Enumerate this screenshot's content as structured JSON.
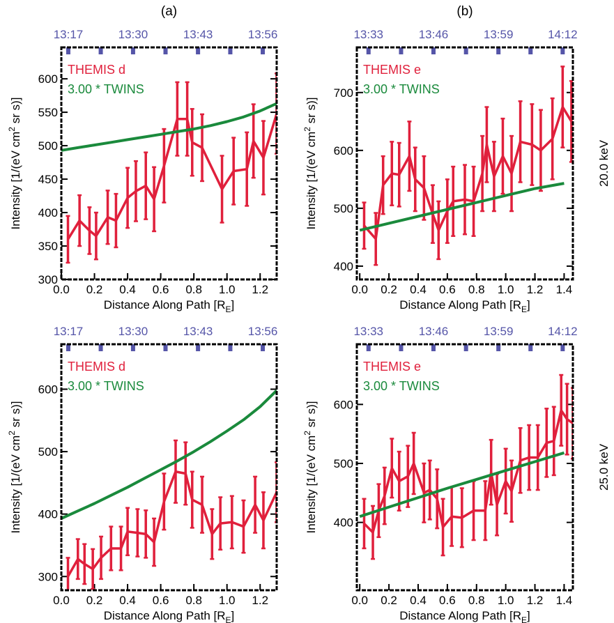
{
  "chart_data": [
    {
      "type": "line",
      "title": "(a)",
      "xlim": [
        0,
        1.3
      ],
      "ylim": [
        300,
        647
      ],
      "xticks": [
        {
          "value": 0,
          "label": "0.0"
        },
        0.2,
        0.4,
        0.6,
        0.8,
        {
          "value": 1,
          "label": "1.0"
        },
        1.2
      ],
      "yticks": [
        300,
        350,
        400,
        450,
        500,
        550,
        600
      ],
      "x2ticks": [
        {
          "value": 0.042,
          "label": "13:17"
        },
        {
          "value": 0.433,
          "label": "13:30"
        },
        {
          "value": 0.825,
          "label": "13:43"
        },
        {
          "value": 1.216,
          "label": "13:56"
        }
      ],
      "x2minorticks": [
        0.238,
        0.629,
        1.02
      ],
      "x2color": "#5555a8",
      "xlabel": [
        "Distance Along Path [R",
        "E",
        "]"
      ],
      "ylabel": [
        "Intensity [1/(eV cm",
        "2",
        " sr s)]"
      ],
      "series": [
        {
          "name": "THEMIS d",
          "color": "#e0203c",
          "x": [
            0.04,
            0.11,
            0.17,
            0.21,
            0.28,
            0.33,
            0.4,
            0.45,
            0.51,
            0.56,
            0.62,
            0.7,
            0.76,
            0.79,
            0.85,
            0.97,
            1.04,
            1.12,
            1.16,
            1.22,
            1.3
          ],
          "values": [
            360,
            388,
            373,
            365,
            393,
            388,
            422,
            432,
            440,
            420,
            470,
            540,
            540,
            505,
            497,
            435,
            462,
            465,
            507,
            482,
            548
          ],
          "errors": [
            35,
            38,
            35,
            35,
            40,
            40,
            45,
            45,
            50,
            48,
            55,
            55,
            55,
            50,
            50,
            50,
            50,
            55,
            55,
            55,
            60
          ]
        },
        {
          "name": "3.00 * TWINS",
          "color": "#1a8a3c",
          "x": [
            0,
            0.1,
            0.2,
            0.3,
            0.4,
            0.5,
            0.6,
            0.7,
            0.8,
            0.9,
            1.0,
            1.1,
            1.2,
            1.3
          ],
          "values": [
            493,
            497,
            501,
            505,
            509,
            513,
            517,
            521,
            525,
            530,
            536,
            543,
            552,
            563
          ]
        }
      ]
    },
    {
      "type": "line",
      "title": "(b)",
      "row_label": "20.0 keV",
      "xlim": [
        -0.02,
        1.46
      ],
      "ylim": [
        377,
        778
      ],
      "xticks": [
        {
          "value": 0,
          "label": "0.0"
        },
        0.2,
        0.4,
        0.6,
        0.8,
        {
          "value": 1,
          "label": "1.0"
        },
        1.2,
        1.4
      ],
      "yticks": [
        400,
        500,
        600,
        700
      ],
      "x2ticks": [
        {
          "value": 0.06,
          "label": "13:33"
        },
        {
          "value": 0.505,
          "label": "13:46"
        },
        {
          "value": 0.95,
          "label": "13:59"
        },
        {
          "value": 1.39,
          "label": "14:12"
        }
      ],
      "x2minorticks": [
        0.283,
        0.728,
        1.17
      ],
      "x2color": "#5555a8",
      "xlabel": [
        "Distance Along Path [R",
        "E",
        "]"
      ],
      "ylabel": [
        "Intensity [1/(eV cm",
        "2",
        " sr s)]"
      ],
      "series": [
        {
          "name": "THEMIS e",
          "color": "#e0203c",
          "x": [
            0.03,
            0.11,
            0.16,
            0.22,
            0.27,
            0.34,
            0.38,
            0.44,
            0.5,
            0.54,
            0.6,
            0.64,
            0.72,
            0.78,
            0.84,
            0.87,
            0.92,
            0.98,
            1.04,
            1.1,
            1.18,
            1.24,
            1.32,
            1.39,
            1.45
          ],
          "values": [
            470,
            447,
            540,
            560,
            558,
            590,
            550,
            535,
            490,
            462,
            495,
            512,
            515,
            512,
            560,
            610,
            555,
            590,
            560,
            615,
            610,
            600,
            620,
            675,
            650
          ],
          "errors": [
            40,
            45,
            50,
            55,
            55,
            60,
            55,
            55,
            50,
            50,
            55,
            60,
            60,
            60,
            65,
            65,
            60,
            65,
            65,
            70,
            70,
            70,
            70,
            70,
            70
          ]
        },
        {
          "name": "3.00 * TWINS",
          "color": "#1a8a3c",
          "x": [
            0,
            0.2,
            0.4,
            0.6,
            0.8,
            1.0,
            1.2,
            1.4
          ],
          "values": [
            462,
            474,
            486,
            498,
            510,
            522,
            534,
            543
          ]
        }
      ]
    },
    {
      "type": "line",
      "xlim": [
        0,
        1.3
      ],
      "ylim": [
        278,
        672
      ],
      "xticks": [
        {
          "value": 0,
          "label": "0.0"
        },
        0.2,
        0.4,
        0.6,
        0.8,
        {
          "value": 1,
          "label": "1.0"
        },
        1.2
      ],
      "yticks": [
        300,
        400,
        500,
        600
      ],
      "x2ticks": [
        {
          "value": 0.042,
          "label": "13:17"
        },
        {
          "value": 0.433,
          "label": "13:30"
        },
        {
          "value": 0.825,
          "label": "13:43"
        },
        {
          "value": 1.216,
          "label": "13:56"
        }
      ],
      "x2minorticks": [
        0.238,
        0.629,
        1.02
      ],
      "x2color": "#5555a8",
      "xlabel": [
        "Distance Along Path [R",
        "E",
        "]"
      ],
      "ylabel": [
        "Intensity [1/(eV cm",
        "2",
        " sr s)]"
      ],
      "series": [
        {
          "name": "THEMIS d",
          "color": "#e0203c",
          "x": [
            0.04,
            0.1,
            0.14,
            0.19,
            0.24,
            0.3,
            0.36,
            0.4,
            0.46,
            0.51,
            0.56,
            0.62,
            0.69,
            0.75,
            0.79,
            0.85,
            0.91,
            0.96,
            1.03,
            1.1,
            1.17,
            1.22,
            1.3
          ],
          "values": [
            300,
            328,
            320,
            312,
            330,
            345,
            345,
            372,
            370,
            368,
            355,
            420,
            468,
            465,
            423,
            415,
            368,
            385,
            387,
            380,
            415,
            390,
            435
          ],
          "errors": [
            30,
            32,
            32,
            32,
            34,
            35,
            35,
            38,
            38,
            38,
            38,
            45,
            50,
            50,
            45,
            45,
            40,
            42,
            42,
            42,
            45,
            45,
            48
          ]
        },
        {
          "name": "3.00 * TWINS",
          "color": "#1a8a3c",
          "x": [
            0,
            0.1,
            0.2,
            0.3,
            0.4,
            0.5,
            0.6,
            0.7,
            0.8,
            0.9,
            1.0,
            1.1,
            1.2,
            1.3
          ],
          "values": [
            393,
            405,
            417,
            430,
            443,
            457,
            471,
            485,
            500,
            516,
            533,
            551,
            572,
            598
          ]
        }
      ]
    },
    {
      "type": "line",
      "row_label": "25.0 keV",
      "xlim": [
        -0.02,
        1.46
      ],
      "ylim": [
        285,
        702
      ],
      "xticks": [
        {
          "value": 0,
          "label": "0.0"
        },
        0.2,
        0.4,
        0.6,
        0.8,
        {
          "value": 1,
          "label": "1.0"
        },
        1.2,
        1.4
      ],
      "yticks": [
        400,
        500,
        600
      ],
      "x2ticks": [
        {
          "value": 0.06,
          "label": "13:33"
        },
        {
          "value": 0.505,
          "label": "13:46"
        },
        {
          "value": 0.95,
          "label": "13:59"
        },
        {
          "value": 1.39,
          "label": "14:12"
        }
      ],
      "x2minorticks": [
        0.283,
        0.728,
        1.17
      ],
      "x2color": "#5555a8",
      "xlabel": [
        "Distance Along Path [R",
        "E",
        "]"
      ],
      "ylabel": [
        "Intensity [1/(eV cm",
        "2",
        " sr s)]"
      ],
      "series": [
        {
          "name": "THEMIS e",
          "color": "#e0203c",
          "x": [
            0.03,
            0.09,
            0.13,
            0.17,
            0.22,
            0.27,
            0.33,
            0.37,
            0.44,
            0.48,
            0.53,
            0.57,
            0.63,
            0.7,
            0.78,
            0.86,
            0.9,
            0.94,
            1.0,
            1.04,
            1.1,
            1.16,
            1.22,
            1.28,
            1.33,
            1.38,
            1.42,
            1.46
          ],
          "values": [
            398,
            383,
            420,
            445,
            492,
            470,
            478,
            500,
            450,
            455,
            440,
            392,
            410,
            408,
            420,
            420,
            485,
            430,
            470,
            453,
            505,
            510,
            510,
            535,
            538,
            590,
            575,
            568
          ],
          "errors": [
            42,
            45,
            45,
            48,
            50,
            50,
            52,
            52,
            50,
            50,
            50,
            48,
            50,
            50,
            50,
            50,
            55,
            52,
            55,
            52,
            55,
            55,
            55,
            58,
            58,
            60,
            60,
            60
          ]
        },
        {
          "name": "3.00 * TWINS",
          "color": "#1a8a3c",
          "x": [
            0,
            0.2,
            0.4,
            0.6,
            0.8,
            1.0,
            1.2,
            1.4
          ],
          "values": [
            410,
            426,
            442,
            458,
            473,
            488,
            503,
            518
          ]
        }
      ]
    }
  ]
}
